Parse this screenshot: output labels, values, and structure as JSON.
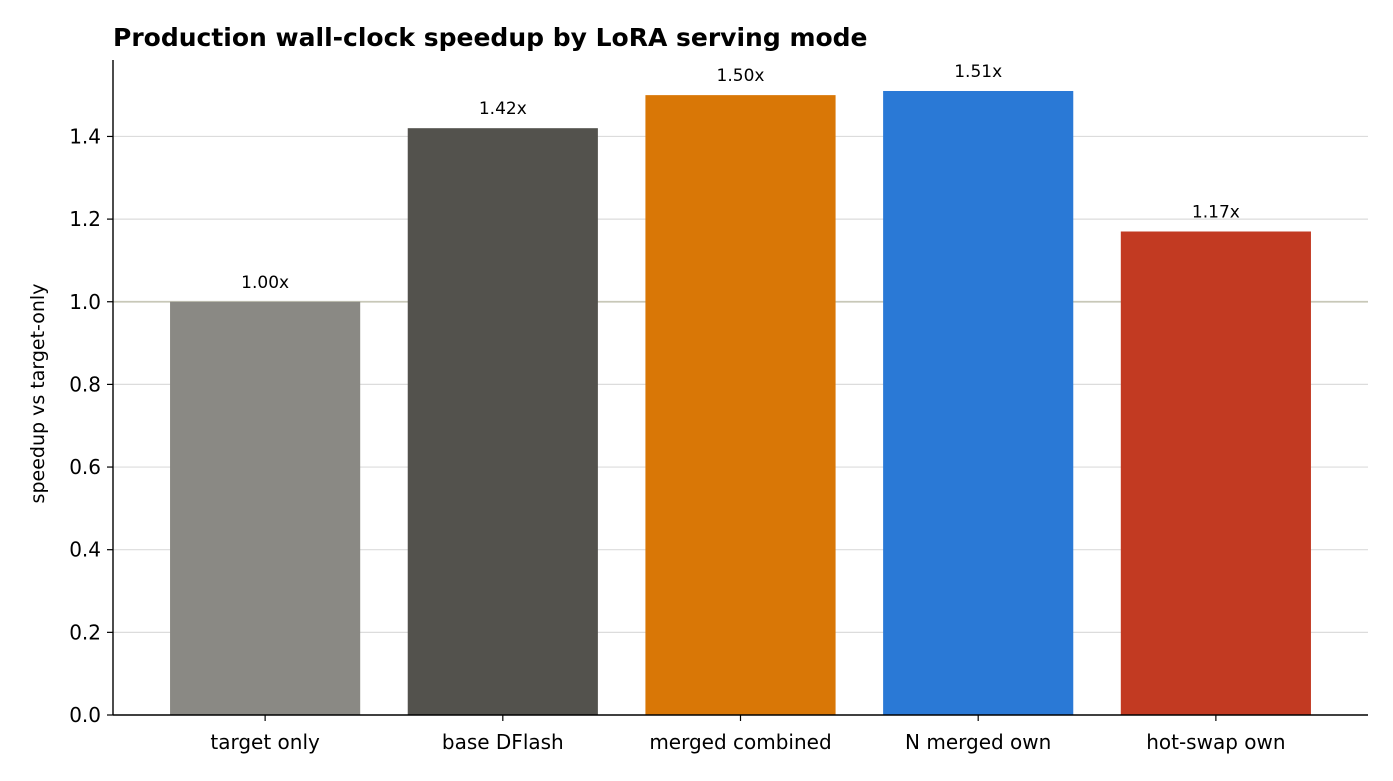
{
  "chart_data": {
    "type": "bar",
    "title": "Production wall-clock speedup by LoRA serving mode",
    "xlabel": "",
    "ylabel": "speedup vs target-only",
    "categories": [
      "target only",
      "base DFlash",
      "merged combined",
      "N merged own",
      "hot-swap own"
    ],
    "values": [
      1.0,
      1.42,
      1.5,
      1.51,
      1.17
    ],
    "value_labels": [
      "1.00x",
      "1.42x",
      "1.50x",
      "1.51x",
      "1.17x"
    ],
    "colors": [
      "#8a8984",
      "#53524d",
      "#d97706",
      "#2a79d6",
      "#c23a22"
    ],
    "ylim": [
      0,
      1.585
    ],
    "yticks": [
      0.0,
      0.2,
      0.4,
      0.6,
      0.8,
      1.0,
      1.2,
      1.4
    ],
    "ytick_labels": [
      "0.0",
      "0.2",
      "0.4",
      "0.6",
      "0.8",
      "1.0",
      "1.2",
      "1.4"
    ],
    "reference_line": 1.0,
    "grid": "horizontal"
  }
}
